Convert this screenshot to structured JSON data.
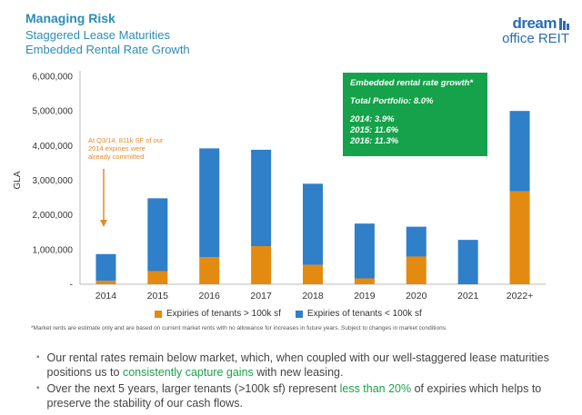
{
  "header": {
    "title": "Managing Risk",
    "subtitle_1": "Staggered Lease Maturities",
    "subtitle_2": "Embedded Rental Rate Growth"
  },
  "logo": {
    "line1": "dream",
    "line2": "office REIT"
  },
  "callout": {
    "heading": "Embedded rental rate growth*",
    "total": "Total Portfolio: 8.0%",
    "lines": [
      "2014: 3.9%",
      "2015: 11.6%",
      "2016: 11.3%"
    ],
    "color": "#15a24a"
  },
  "annotation": {
    "text": "At Q3/14, 811k SF of our 2014 expiries were already committed",
    "color": "#e38a2b"
  },
  "footnote": "*Market rents are estimate only and are based on current market rents with no allowance for increases in future years. Subject to changes in market conditions.",
  "bullets": [
    {
      "pre": "Our rental rates remain below market, which, when coupled with our well-staggered lease maturities positions us to ",
      "highlight": "consistently capture gains",
      "post": " with new leasing."
    },
    {
      "pre": "Over the next 5 years, larger tenants (>100k sf) represent ",
      "highlight": "less than 20%",
      "post": " of expiries which helps to preserve the stability of our cash flows."
    }
  ],
  "chart_data": {
    "type": "bar",
    "stacked": true,
    "categories": [
      "2014",
      "2015",
      "2016",
      "2017",
      "2018",
      "2019",
      "2020",
      "2021",
      "2022+"
    ],
    "series": [
      {
        "name": "Expiries of tenants > 100k sf",
        "color": "#e38a11",
        "values": [
          100000,
          380000,
          780000,
          1100000,
          560000,
          170000,
          800000,
          0,
          2680000
        ]
      },
      {
        "name": "Expiries of tenants < 100k sf",
        "color": "#2f7fc9",
        "values": [
          770000,
          2100000,
          3140000,
          2780000,
          2340000,
          1580000,
          860000,
          1280000,
          2320000
        ]
      }
    ],
    "ylabel": "GLA",
    "ylim": [
      0,
      6000000
    ],
    "yticks": [
      0,
      1000000,
      2000000,
      3000000,
      4000000,
      5000000,
      6000000
    ],
    "ytick_labels": [
      "-",
      "1,000,000",
      "2,000,000",
      "3,000,000",
      "4,000,000",
      "5,000,000",
      "6,000,000"
    ],
    "grid": false,
    "legend_position": "bottom"
  }
}
